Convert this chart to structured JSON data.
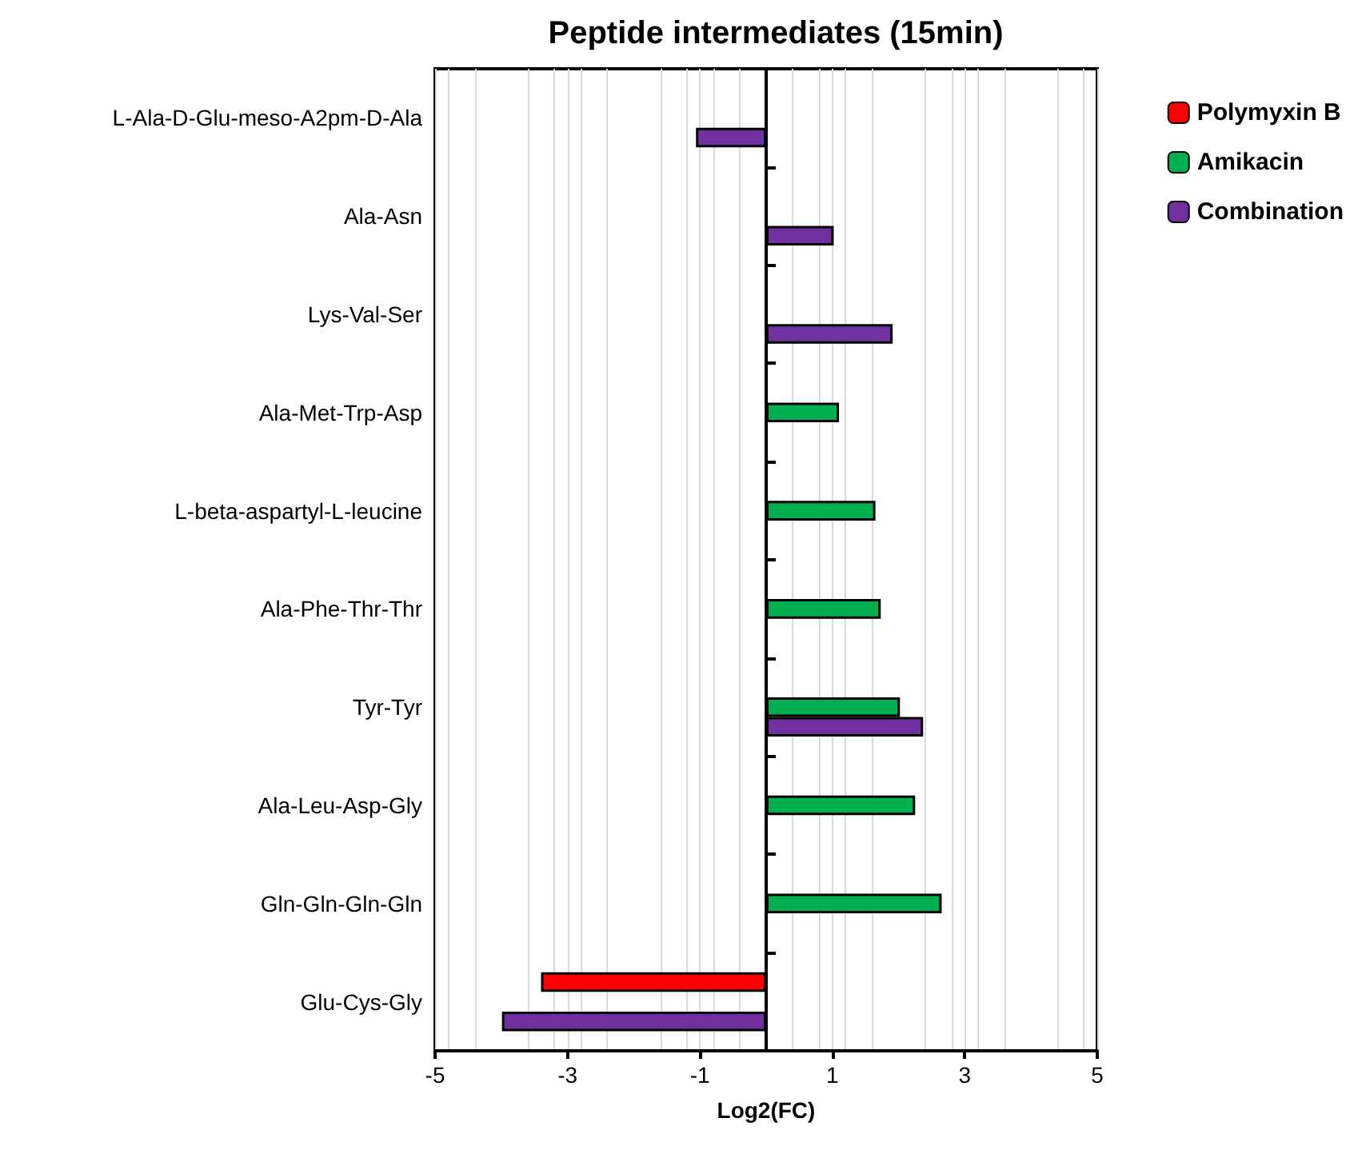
{
  "chart_data": {
    "type": "bar",
    "orientation": "horizontal",
    "title": "Peptide intermediates (15min)",
    "xlabel": "Log2(FC)",
    "categories": [
      "L-Ala-D-Glu-meso-A2pm-D-Ala",
      "Ala-Asn",
      "Lys-Val-Ser",
      "Ala-Met-Trp-Asp",
      "L-beta-aspartyl-L-leucine",
      "Ala-Phe-Thr-Thr",
      "Tyr-Tyr",
      "Ala-Leu-Asp-Gly",
      "Gln-Gln-Gln-Gln",
      "Glu-Cys-Gly"
    ],
    "series": [
      {
        "name": "Polymyxin B",
        "color": "#ff0000",
        "values": [
          null,
          null,
          null,
          null,
          null,
          null,
          null,
          null,
          null,
          -3.4
        ]
      },
      {
        "name": "Amikacin",
        "color": "#00b050",
        "values": [
          null,
          null,
          null,
          1.1,
          1.65,
          1.73,
          2.02,
          2.25,
          2.65,
          null
        ]
      },
      {
        "name": "Combination",
        "color": "#7030a0",
        "values": [
          -1.06,
          1.02,
          1.91,
          null,
          null,
          null,
          2.37,
          null,
          null,
          -3.99
        ]
      }
    ],
    "xlim": [
      -5,
      5
    ],
    "xticks": [
      -5,
      -3,
      -1,
      1,
      3,
      5
    ],
    "grid": "x",
    "legend": "top right"
  }
}
